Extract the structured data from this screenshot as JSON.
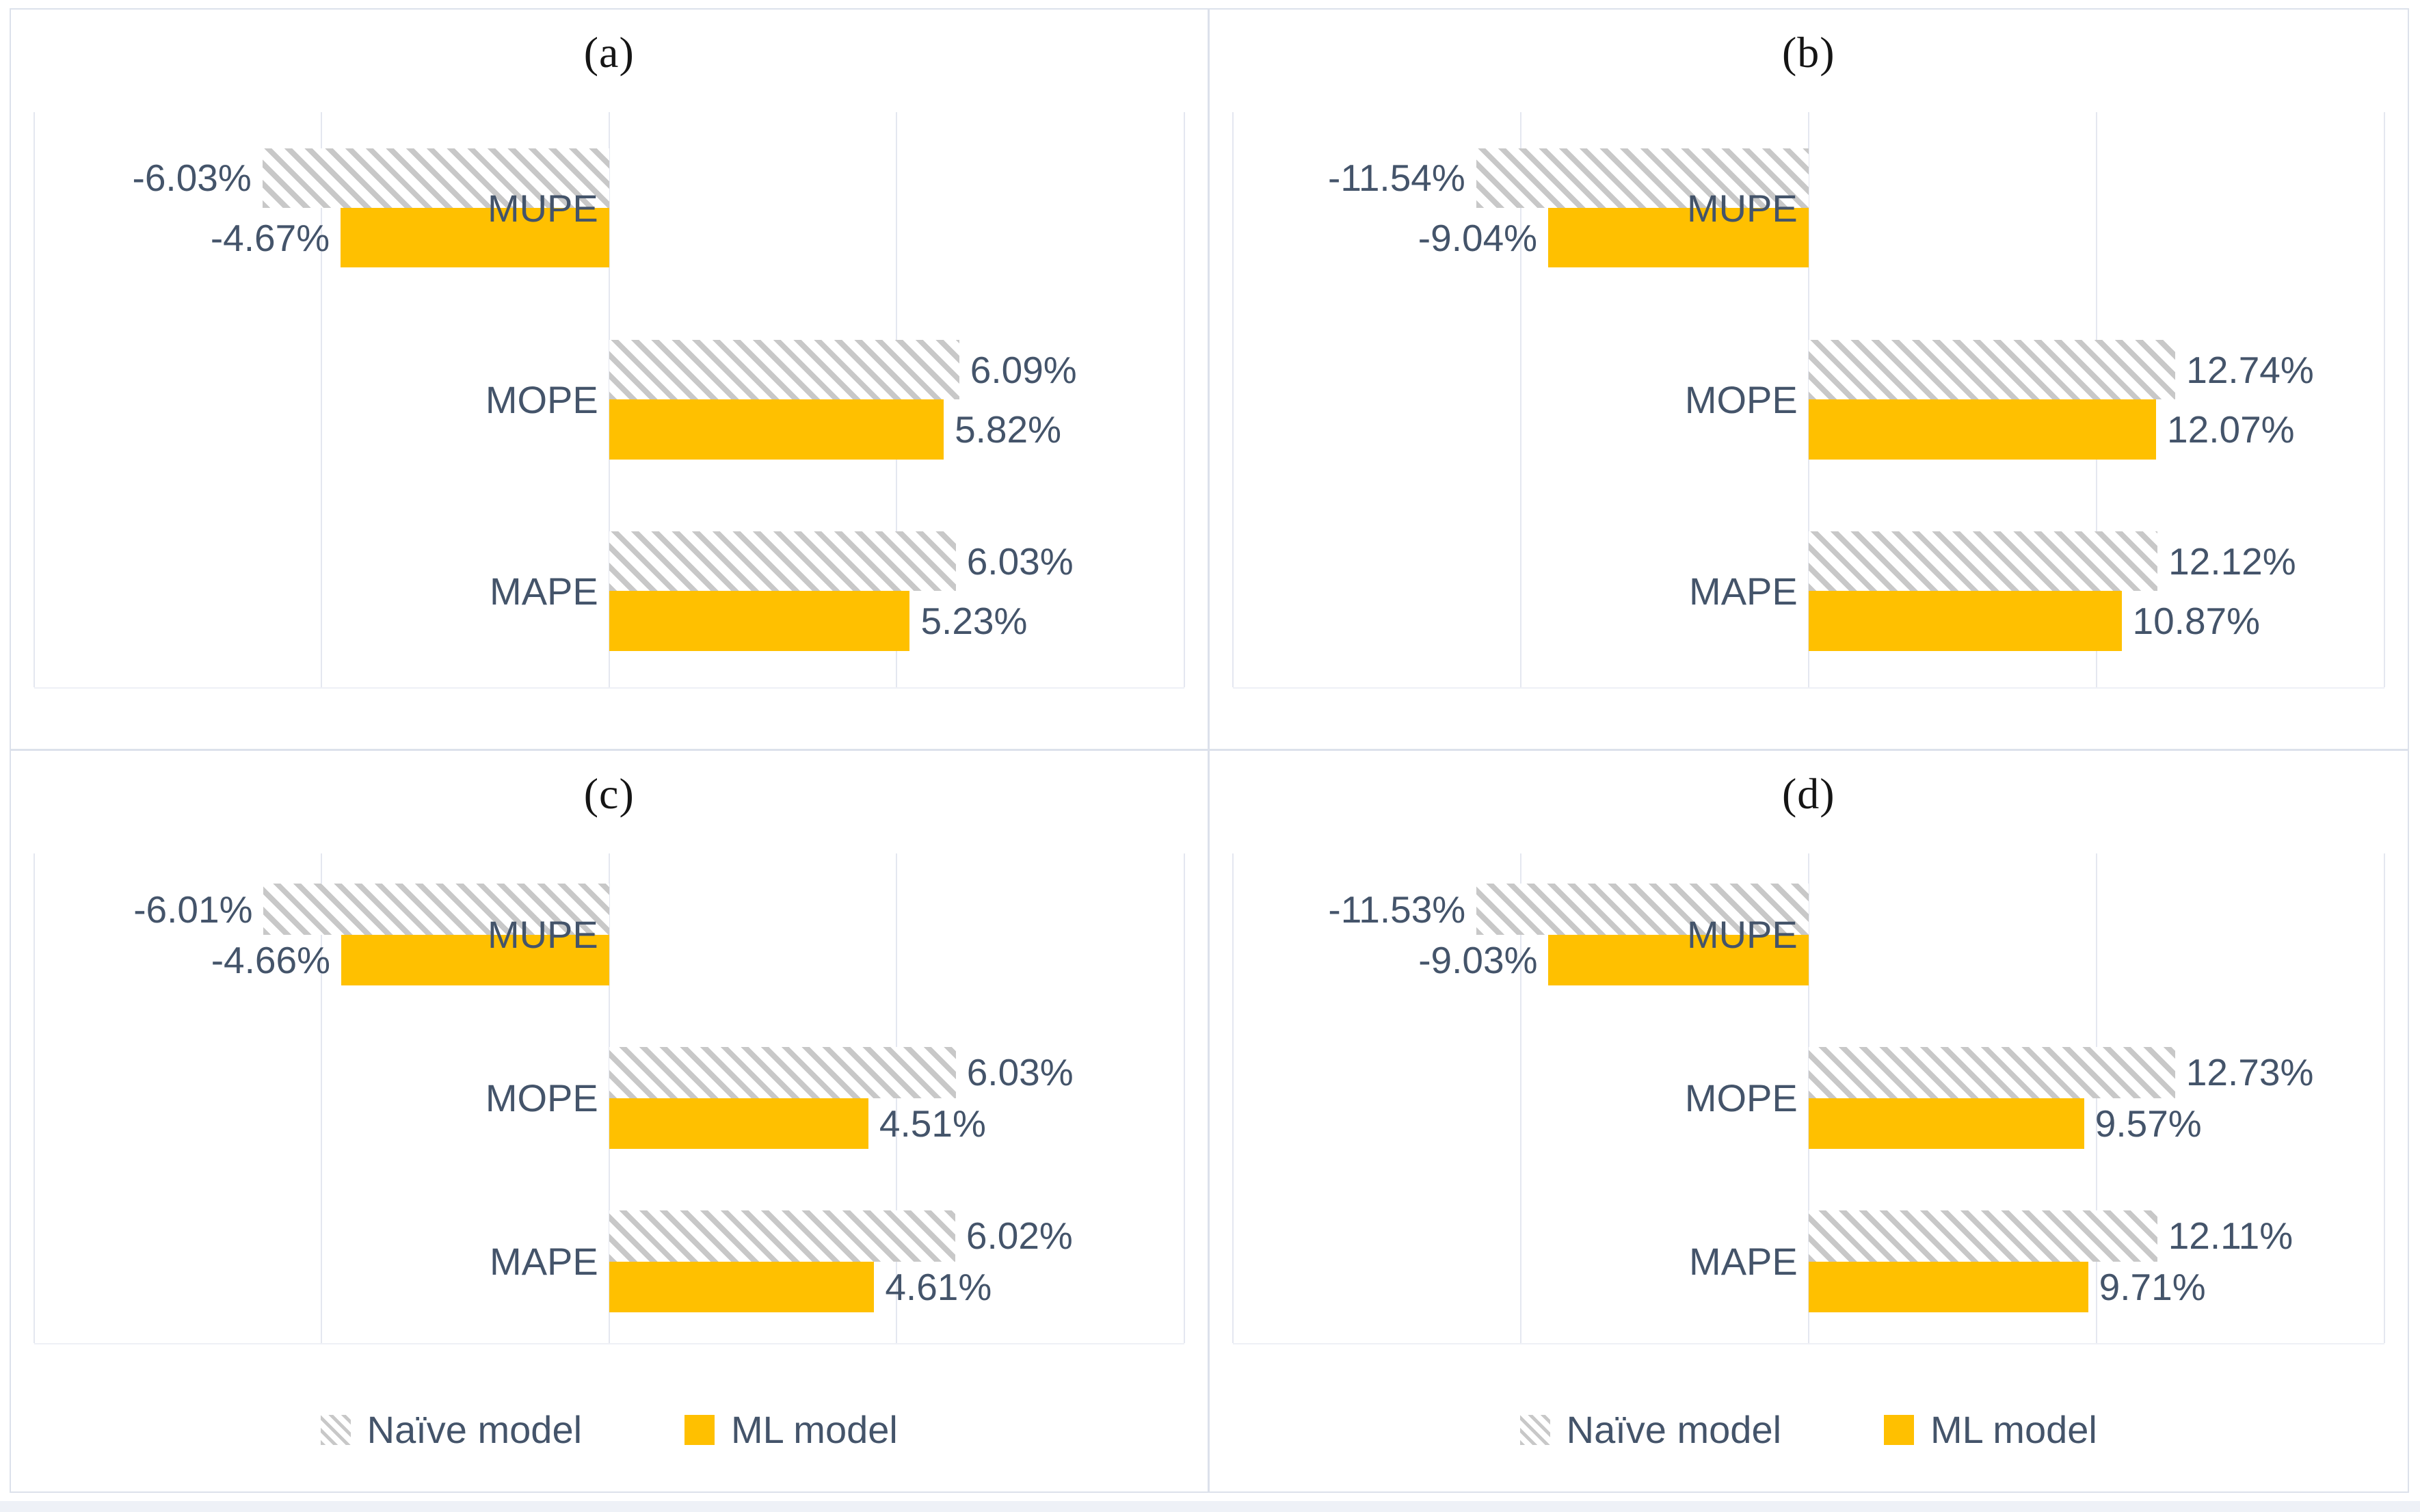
{
  "figure": {
    "legend": {
      "items": [
        {
          "label": "Naïve model",
          "swatch": "hatch"
        },
        {
          "label": "ML model",
          "swatch": "solid"
        }
      ]
    },
    "colors": {
      "ml_bar": "#FFC000",
      "hatch_stripe": "#C8C8C8",
      "label_text": "#44546A",
      "title_text": "#151515",
      "gridline": "#E4E7F0",
      "panel_border": "#DCE1EB",
      "bottom_strip": "#EEF1F7"
    }
  },
  "chart_data": [
    {
      "id": "a",
      "type": "bar",
      "orientation": "horizontal",
      "title": "(a)",
      "categories": [
        "MUPE",
        "MOPE",
        "MAPE"
      ],
      "series": [
        {
          "name": "Naïve model",
          "style": "hatched",
          "values": [
            -6.03,
            6.09,
            6.03
          ]
        },
        {
          "name": "ML model",
          "style": "solid",
          "values": [
            -4.67,
            5.82,
            5.23
          ]
        }
      ],
      "data_labels": [
        [
          "-6.03%",
          "6.09%",
          "6.03%"
        ],
        [
          "-4.67%",
          "5.82%",
          "5.23%"
        ]
      ],
      "value_format": "0.00%",
      "xlim": [
        -10,
        10
      ],
      "gridline_step": 5,
      "grid_on": true,
      "legend_visible": false
    },
    {
      "id": "b",
      "type": "bar",
      "orientation": "horizontal",
      "title": "(b)",
      "categories": [
        "MUPE",
        "MOPE",
        "MAPE"
      ],
      "series": [
        {
          "name": "Naïve model",
          "style": "hatched",
          "values": [
            -11.54,
            12.74,
            12.12
          ]
        },
        {
          "name": "ML model",
          "style": "solid",
          "values": [
            -9.04,
            12.07,
            10.87
          ]
        }
      ],
      "data_labels": [
        [
          "-11.54%",
          "12.74%",
          "12.12%"
        ],
        [
          "-9.04%",
          "12.07%",
          "10.87%"
        ]
      ],
      "value_format": "0.00%",
      "xlim": [
        -20,
        20
      ],
      "gridline_step": 10,
      "grid_on": true,
      "legend_visible": false
    },
    {
      "id": "c",
      "type": "bar",
      "orientation": "horizontal",
      "title": "(c)",
      "categories": [
        "MUPE",
        "MOPE",
        "MAPE"
      ],
      "series": [
        {
          "name": "Naïve model",
          "style": "hatched",
          "values": [
            -6.01,
            6.03,
            6.02
          ]
        },
        {
          "name": "ML model",
          "style": "solid",
          "values": [
            -4.66,
            4.51,
            4.61
          ]
        }
      ],
      "data_labels": [
        [
          "-6.01%",
          "6.03%",
          "6.02%"
        ],
        [
          "-4.66%",
          "4.51%",
          "4.61%"
        ]
      ],
      "value_format": "0.00%",
      "xlim": [
        -10,
        10
      ],
      "gridline_step": 5,
      "grid_on": true,
      "legend_visible": true
    },
    {
      "id": "d",
      "type": "bar",
      "orientation": "horizontal",
      "title": "(d)",
      "categories": [
        "MUPE",
        "MOPE",
        "MAPE"
      ],
      "series": [
        {
          "name": "Naïve model",
          "style": "hatched",
          "values": [
            -11.53,
            12.73,
            12.11
          ]
        },
        {
          "name": "ML model",
          "style": "solid",
          "values": [
            -9.03,
            9.57,
            9.71
          ]
        }
      ],
      "data_labels": [
        [
          "-11.53%",
          "12.73%",
          "12.11%"
        ],
        [
          "-9.03%",
          "9.57%",
          "9.71%"
        ]
      ],
      "value_format": "0.00%",
      "xlim": [
        -20,
        20
      ],
      "gridline_step": 10,
      "grid_on": true,
      "legend_visible": true
    }
  ]
}
